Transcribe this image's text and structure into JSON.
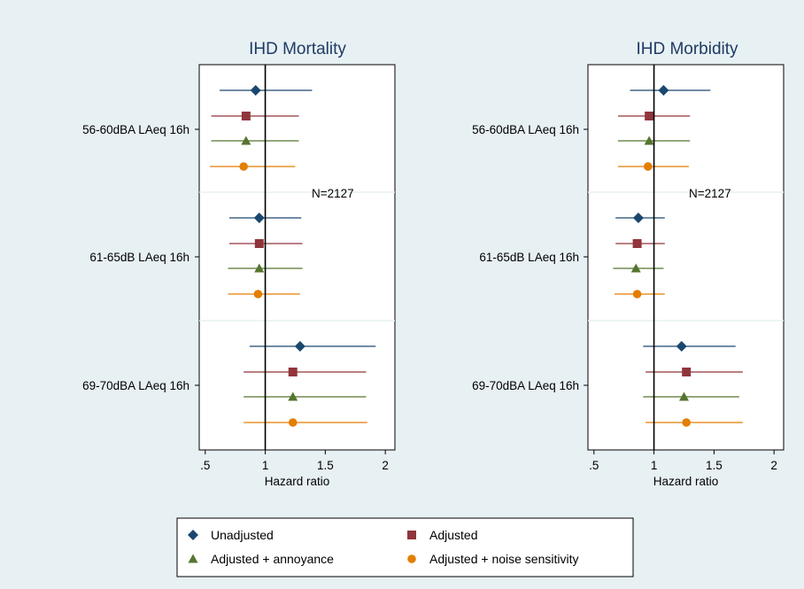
{
  "chart_data": [
    {
      "type": "forest",
      "title": "IHD Mortality",
      "xlabel": "Hazard ratio",
      "xlim": [
        0.45,
        2.08
      ],
      "xticks": [
        0.5,
        1,
        1.5,
        2
      ],
      "xtick_labels": [
        ".5",
        "1",
        "1.5",
        "2"
      ],
      "reference_line": 1,
      "annotation": "N=2127",
      "groups": [
        {
          "label": "56-60dBA LAeq 16h",
          "rows": [
            {
              "series": "Unadjusted",
              "hr": 0.92,
              "lo": 0.62,
              "hi": 1.39
            },
            {
              "series": "Adjusted",
              "hr": 0.84,
              "lo": 0.55,
              "hi": 1.28
            },
            {
              "series": "Adjusted + annoyance",
              "hr": 0.84,
              "lo": 0.55,
              "hi": 1.28
            },
            {
              "series": "Adjusted + noise sensitivity",
              "hr": 0.82,
              "lo": 0.54,
              "hi": 1.25
            }
          ]
        },
        {
          "label": "61-65dB LAeq 16h",
          "rows": [
            {
              "series": "Unadjusted",
              "hr": 0.95,
              "lo": 0.7,
              "hi": 1.3
            },
            {
              "series": "Adjusted",
              "hr": 0.95,
              "lo": 0.7,
              "hi": 1.31
            },
            {
              "series": "Adjusted + annoyance",
              "hr": 0.95,
              "lo": 0.69,
              "hi": 1.31
            },
            {
              "series": "Adjusted + noise sensitivity",
              "hr": 0.94,
              "lo": 0.69,
              "hi": 1.29
            }
          ]
        },
        {
          "label": "69-70dBA LAeq 16h",
          "rows": [
            {
              "series": "Unadjusted",
              "hr": 1.29,
              "lo": 0.87,
              "hi": 1.92
            },
            {
              "series": "Adjusted",
              "hr": 1.23,
              "lo": 0.82,
              "hi": 1.84
            },
            {
              "series": "Adjusted + annoyance",
              "hr": 1.23,
              "lo": 0.82,
              "hi": 1.84
            },
            {
              "series": "Adjusted + noise sensitivity",
              "hr": 1.23,
              "lo": 0.82,
              "hi": 1.85
            }
          ]
        }
      ]
    },
    {
      "type": "forest",
      "title": "IHD Morbidity",
      "xlabel": "Hazard ratio",
      "xlim": [
        0.45,
        2.08
      ],
      "xticks": [
        0.5,
        1,
        1.5,
        2
      ],
      "xtick_labels": [
        ".5",
        "1",
        "1.5",
        "2"
      ],
      "reference_line": 1,
      "annotation": "N=2127",
      "groups": [
        {
          "label": "56-60dBA LAeq 16h",
          "rows": [
            {
              "series": "Unadjusted",
              "hr": 1.08,
              "lo": 0.8,
              "hi": 1.47
            },
            {
              "series": "Adjusted",
              "hr": 0.96,
              "lo": 0.7,
              "hi": 1.3
            },
            {
              "series": "Adjusted + annoyance",
              "hr": 0.96,
              "lo": 0.7,
              "hi": 1.3
            },
            {
              "series": "Adjusted + noise sensitivity",
              "hr": 0.95,
              "lo": 0.7,
              "hi": 1.29
            }
          ]
        },
        {
          "label": "61-65dB LAeq 16h",
          "rows": [
            {
              "series": "Unadjusted",
              "hr": 0.87,
              "lo": 0.68,
              "hi": 1.09
            },
            {
              "series": "Adjusted",
              "hr": 0.86,
              "lo": 0.68,
              "hi": 1.09
            },
            {
              "series": "Adjusted + annoyance",
              "hr": 0.85,
              "lo": 0.66,
              "hi": 1.08
            },
            {
              "series": "Adjusted + noise sensitivity",
              "hr": 0.86,
              "lo": 0.67,
              "hi": 1.09
            }
          ]
        },
        {
          "label": "69-70dBA LAeq 16h",
          "rows": [
            {
              "series": "Unadjusted",
              "hr": 1.23,
              "lo": 0.91,
              "hi": 1.68
            },
            {
              "series": "Adjusted",
              "hr": 1.27,
              "lo": 0.93,
              "hi": 1.74
            },
            {
              "series": "Adjusted + annoyance",
              "hr": 1.25,
              "lo": 0.91,
              "hi": 1.71
            },
            {
              "series": "Adjusted + noise sensitivity",
              "hr": 1.27,
              "lo": 0.93,
              "hi": 1.74
            }
          ]
        }
      ]
    }
  ],
  "series_styles": [
    {
      "name": "Unadjusted",
      "marker": "diamond",
      "color": "#1a476f"
    },
    {
      "name": "Adjusted",
      "marker": "square",
      "color": "#90353b"
    },
    {
      "name": "Adjusted + annoyance",
      "marker": "triangle",
      "color": "#55752f"
    },
    {
      "name": "Adjusted + noise sensitivity",
      "marker": "circle",
      "color": "#e37e00"
    }
  ],
  "legend": {
    "items": [
      "Unadjusted",
      "Adjusted",
      "Adjusted + annoyance",
      "Adjusted + noise sensitivity"
    ]
  }
}
